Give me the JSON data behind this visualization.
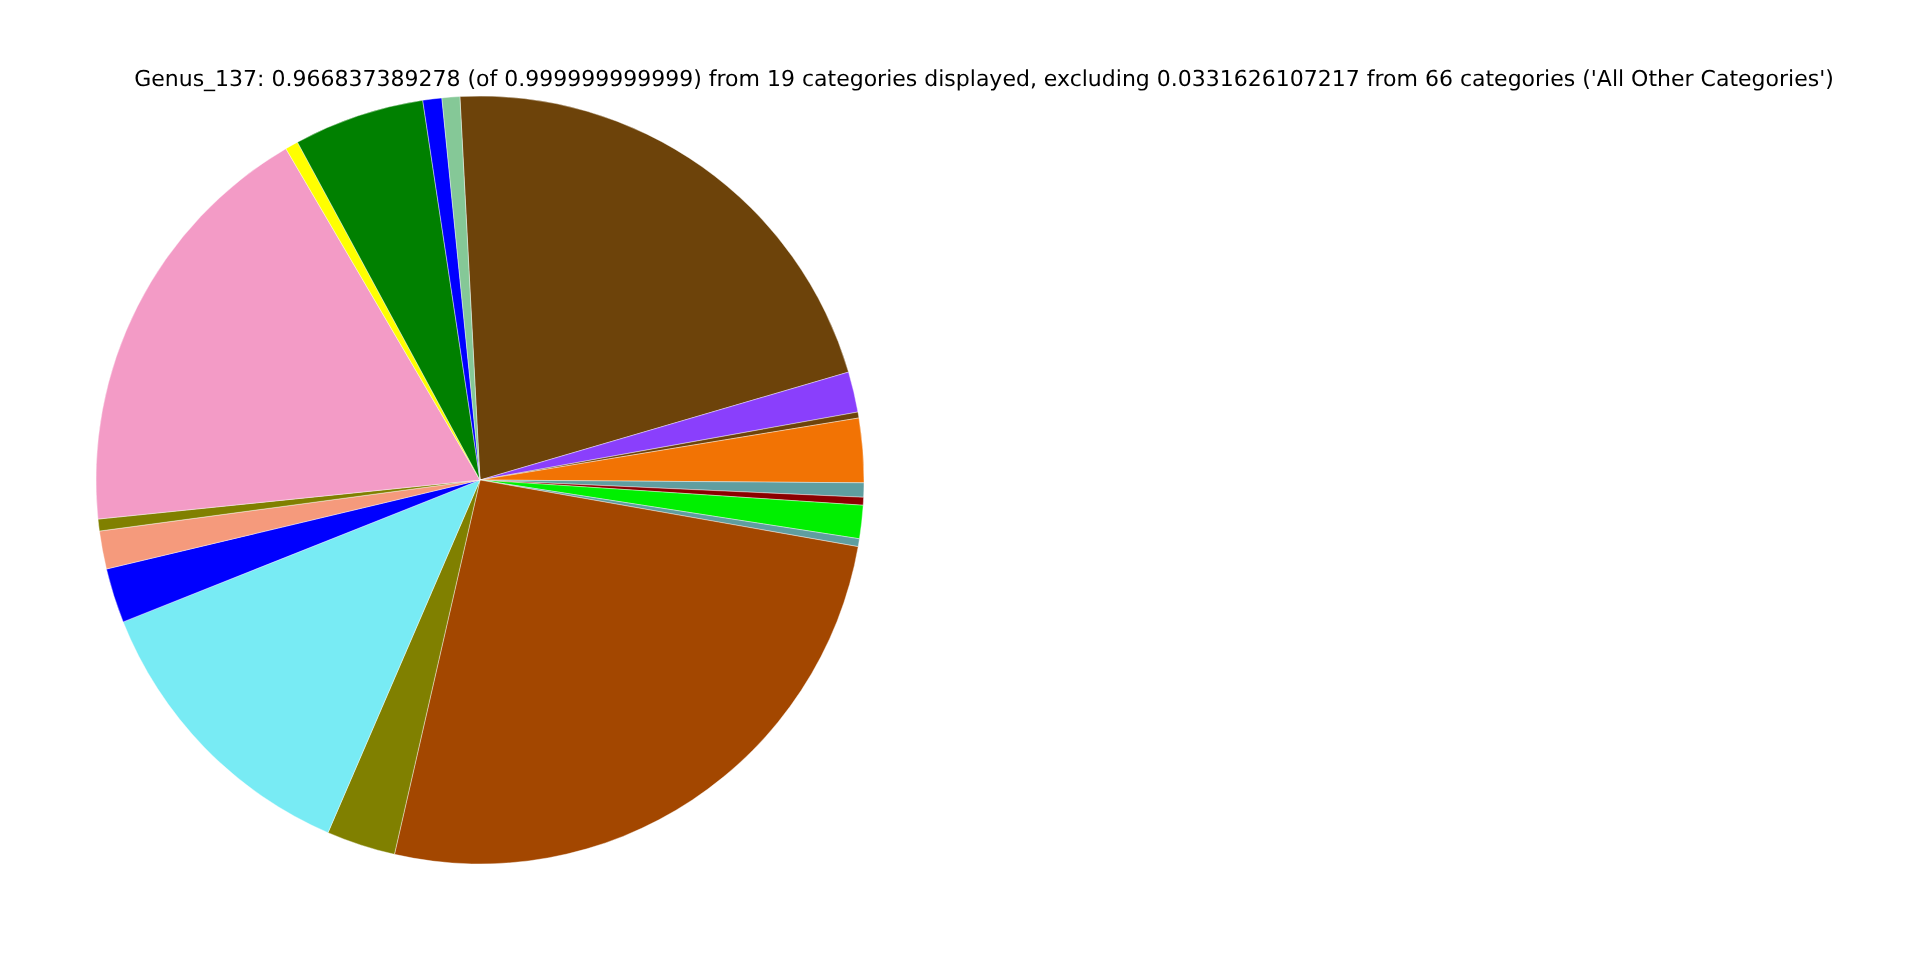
{
  "chart_data": {
    "type": "pie",
    "title": "Genus_137: 0.966837389278 (of 0.999999999999) from 19 categories displayed, excluding 0.0331626107217 from 66 categories ('All Other Categories')",
    "categories": [
      null,
      null,
      null,
      null,
      null,
      null,
      null,
      null,
      null,
      null,
      null,
      null,
      null,
      null,
      null,
      null,
      null,
      null,
      null
    ],
    "values": [
      21.3,
      1.7,
      0.25,
      2.7,
      0.6,
      0.33,
      1.4,
      0.33,
      25.8,
      2.9,
      12.5,
      2.3,
      1.6,
      0.5,
      18.19,
      0.55,
      5.5,
      0.8,
      0.75
    ],
    "colors": [
      "#6d430a",
      "#8a3ffc",
      "#6d430a",
      "#f27304",
      "#5f9ea0",
      "#8b0000",
      "#00f000",
      "#5f9ea0",
      "#a34700",
      "#808000",
      "#78ebf4",
      "#0000ff",
      "#f59a7c",
      "#808000",
      "#f39bc6",
      "#ffff00",
      "#008000",
      "#0000ff",
      "#85c897"
    ]
  }
}
